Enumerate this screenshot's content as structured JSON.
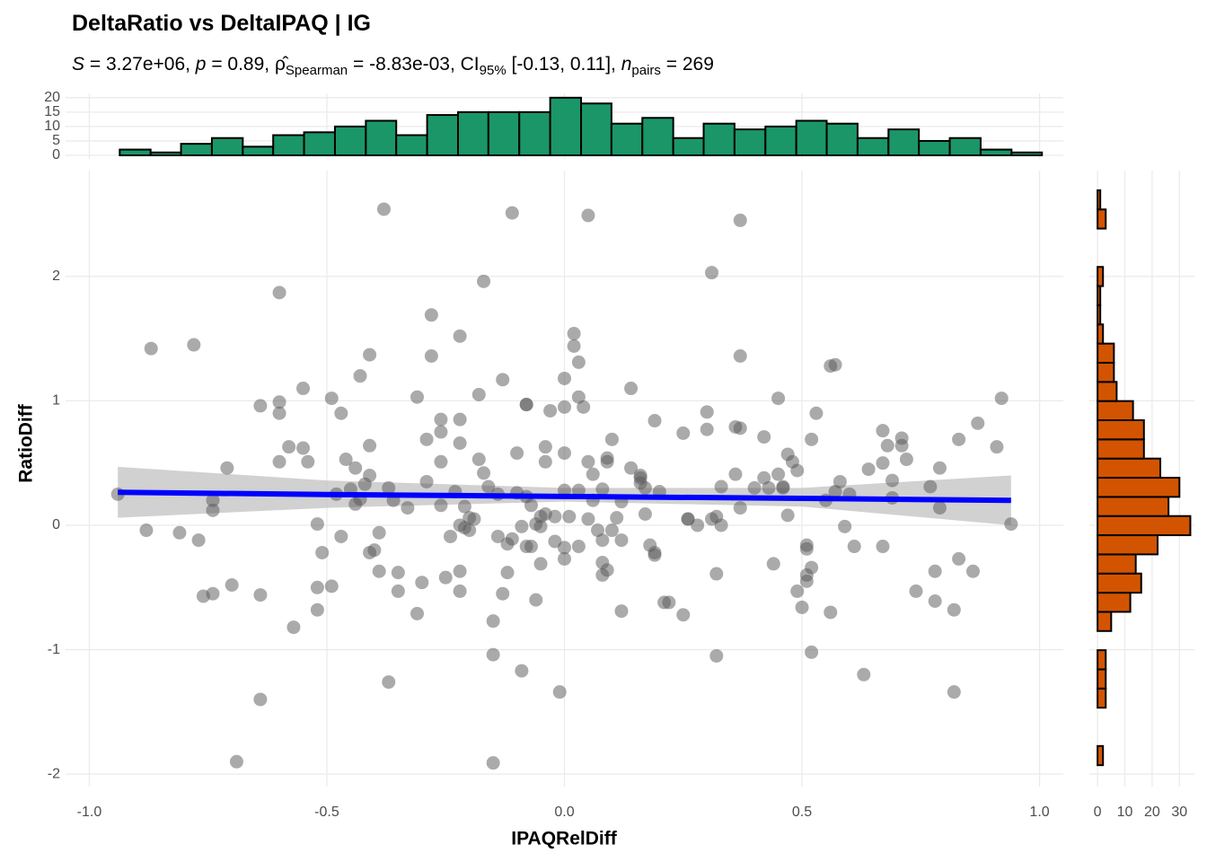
{
  "chart_data": [
    {
      "type": "scatter",
      "title": "DeltaRatio vs DeltaIPAQ | IG",
      "subtitle": [
        "S",
        " = 3.27e+06, ",
        "p",
        " = 0.89, ",
        "ρ̂",
        "Spearman",
        " = -8.83e-03, CI",
        "95%",
        " [-0.13, 0.11], ",
        "n",
        "pairs",
        " = 269"
      ],
      "x_label": "IPAQRelDiff",
      "y_label": "RatioDiff",
      "xlim": [
        -1.05,
        1.05
      ],
      "ylim": [
        -2.1,
        2.85
      ],
      "xticks": [
        {
          "value": -1,
          "label": "-1.0"
        },
        {
          "value": -0.5,
          "label": "-0.5"
        },
        {
          "value": 0,
          "label": "0.0"
        },
        {
          "value": 0.5,
          "label": "0.5"
        },
        {
          "value": 1,
          "label": "1.0"
        }
      ],
      "yticks": [
        -2,
        -1,
        0,
        1,
        2
      ],
      "grid": true,
      "color": "#555555",
      "x": [
        -0.94,
        -0.88,
        -0.87,
        -0.81,
        -0.78,
        -0.77,
        -0.76,
        -0.74,
        -0.74,
        -0.74,
        -0.71,
        -0.7,
        -0.69,
        -0.64,
        -0.64,
        -0.64,
        -0.6,
        -0.6,
        -0.6,
        -0.6,
        -0.58,
        -0.57,
        -0.55,
        -0.55,
        -0.54,
        -0.52,
        -0.51,
        -0.52,
        -0.52,
        -0.49,
        -0.49,
        -0.48,
        -0.47,
        -0.47,
        -0.45,
        -0.46,
        -0.44,
        -0.44,
        -0.43,
        -0.43,
        -0.42,
        -0.41,
        -0.41,
        -0.41,
        -0.41,
        -0.4,
        -0.39,
        -0.39,
        -0.38,
        -0.37,
        -0.37,
        -0.36,
        -0.35,
        -0.35,
        -0.33,
        -0.31,
        -0.31,
        -0.3,
        -0.29,
        -0.28,
        -0.28,
        -0.29,
        -0.26,
        -0.26,
        -0.26,
        -0.26,
        -0.25,
        -0.24,
        -0.23,
        -0.22,
        -0.22,
        -0.22,
        -0.22,
        -0.22,
        -0.22,
        -0.21,
        -0.21,
        -0.2,
        -0.2,
        -0.19,
        -0.18,
        -0.18,
        -0.17,
        -0.17,
        -0.16,
        -0.15,
        -0.15,
        -0.15,
        -0.14,
        -0.14,
        -0.13,
        -0.13,
        -0.12,
        -0.12,
        -0.11,
        -0.11,
        -0.1,
        -0.1,
        -0.09,
        -0.09,
        -0.08,
        -0.08,
        -0.08,
        -0.08,
        -0.07,
        -0.07,
        -0.06,
        -0.06,
        -0.05,
        -0.05,
        -0.05,
        -0.04,
        -0.04,
        -0.04,
        -0.03,
        -0.02,
        -0.02,
        -0.01,
        0.0,
        0.0,
        0.0,
        0.0,
        0.0,
        0.0,
        0.01,
        0.02,
        0.02,
        0.03,
        0.03,
        0.03,
        0.03,
        0.04,
        0.05,
        0.05,
        0.05,
        0.06,
        0.06,
        0.07,
        0.08,
        0.08,
        0.08,
        0.08,
        0.09,
        0.09,
        0.09,
        0.1,
        0.1,
        0.11,
        0.12,
        0.12,
        0.12,
        0.14,
        0.14,
        0.16,
        0.16,
        0.16,
        0.17,
        0.17,
        0.18,
        0.19,
        0.19,
        0.19,
        0.2,
        0.21,
        0.22,
        0.25,
        0.25,
        0.26,
        0.26,
        0.28,
        0.3,
        0.3,
        0.31,
        0.31,
        0.32,
        0.32,
        0.32,
        0.33,
        0.33,
        0.36,
        0.36,
        0.37,
        0.37,
        0.37,
        0.37,
        0.4,
        0.42,
        0.42,
        0.43,
        0.44,
        0.45,
        0.45,
        0.46,
        0.46,
        0.47,
        0.47,
        0.48,
        0.49,
        0.49,
        0.5,
        0.51,
        0.51,
        0.51,
        0.51,
        0.52,
        0.52,
        0.52,
        0.53,
        0.55,
        0.56,
        0.56,
        0.57,
        0.57,
        0.58,
        0.59,
        0.6,
        0.61,
        0.63,
        0.64,
        0.67,
        0.67,
        0.67,
        0.68,
        0.69,
        0.69,
        0.71,
        0.71,
        0.72,
        0.74,
        0.77,
        0.78,
        0.79,
        0.78,
        0.79,
        0.82,
        0.82,
        0.83,
        0.83,
        0.87,
        0.86,
        0.91,
        0.92,
        0.94
      ],
      "y": [
        0.25,
        -0.04,
        1.42,
        -0.06,
        1.45,
        -0.12,
        -0.57,
        -0.55,
        0.12,
        0.2,
        0.46,
        -0.48,
        -1.9,
        0.96,
        -0.56,
        -1.4,
        1.87,
        0.99,
        0.9,
        0.51,
        0.63,
        -0.82,
        0.62,
        1.1,
        0.51,
        0.01,
        -0.22,
        -0.68,
        -0.5,
        1.02,
        -0.49,
        0.25,
        0.9,
        -0.09,
        0.29,
        0.53,
        0.17,
        0.46,
        1.2,
        0.21,
        0.33,
        -0.22,
        0.64,
        0.4,
        1.37,
        -0.2,
        -0.37,
        -0.06,
        2.54,
        -1.26,
        0.3,
        0.2,
        -0.53,
        -0.38,
        0.14,
        -0.71,
        1.03,
        -0.46,
        0.35,
        1.69,
        1.36,
        0.69,
        0.85,
        0.51,
        0.75,
        0.16,
        -0.42,
        -0.09,
        0.27,
        0.66,
        0.85,
        -0.53,
        -0.37,
        1.52,
        0.0,
        0.15,
        -0.02,
        0.06,
        -0.04,
        0.05,
        1.05,
        0.53,
        0.42,
        1.96,
        0.31,
        -1.04,
        -0.77,
        -1.91,
        0.25,
        -0.09,
        1.17,
        -0.55,
        -0.15,
        -0.38,
        -0.11,
        2.51,
        0.26,
        0.58,
        -1.17,
        -0.01,
        0.97,
        0.23,
        -0.17,
        0.97,
        -0.17,
        0.16,
        0.01,
        -0.6,
        0.07,
        -0.31,
        -0.01,
        0.09,
        0.63,
        0.51,
        0.92,
        0.07,
        -0.13,
        -1.34,
        1.18,
        0.58,
        0.95,
        0.28,
        -0.27,
        -0.18,
        0.07,
        1.54,
        1.44,
        1.03,
        1.31,
        0.28,
        -0.17,
        0.95,
        2.49,
        0.51,
        0.05,
        0.41,
        0.2,
        -0.04,
        0.29,
        -0.12,
        -0.4,
        -0.3,
        -0.36,
        0.54,
        0.51,
        -0.04,
        0.69,
        0.06,
        0.19,
        -0.12,
        -0.69,
        1.1,
        0.46,
        0.38,
        0.4,
        0.34,
        0.3,
        0.09,
        -0.16,
        -0.22,
        -0.24,
        0.84,
        0.27,
        -0.62,
        -0.62,
        -0.72,
        0.74,
        0.05,
        0.05,
        0.0,
        0.91,
        0.77,
        0.05,
        2.03,
        -0.39,
        0.07,
        -1.05,
        0.31,
        0.0,
        0.41,
        0.79,
        0.78,
        1.36,
        0.14,
        2.45,
        0.3,
        0.71,
        0.38,
        0.3,
        -0.31,
        0.41,
        1.02,
        0.31,
        0.3,
        0.57,
        0.08,
        0.51,
        -0.53,
        0.44,
        -0.66,
        -0.45,
        -0.4,
        -0.16,
        -0.19,
        0.69,
        -0.34,
        -1.02,
        0.9,
        0.2,
        -0.7,
        1.28,
        0.27,
        1.29,
        0.35,
        -0.01,
        0.25,
        -0.17,
        -1.2,
        0.45,
        -0.17,
        0.76,
        0.5,
        0.64,
        0.36,
        0.22,
        0.7,
        0.64,
        0.53,
        -0.53,
        0.31,
        -0.37,
        0.46,
        -0.61,
        0.14,
        -0.68,
        -1.34,
        0.69,
        -0.27,
        0.82,
        -0.37,
        0.63,
        1.02,
        0.01
      ],
      "fit": {
        "x": [
          -0.94,
          -0.5,
          0,
          0.5,
          0.94
        ],
        "y": [
          0.265,
          0.247,
          0.232,
          0.216,
          0.2
        ],
        "lower": [
          0.06,
          0.14,
          0.19,
          0.15,
          0.0
        ],
        "upper": [
          0.47,
          0.36,
          0.3,
          0.3,
          0.4
        ],
        "color": "#0000ff",
        "band_color": "#bebebe"
      }
    },
    {
      "type": "histogram",
      "orientation": "vertical",
      "color": "#1b9669",
      "bins": [
        -0.936,
        -0.871,
        -0.807,
        -0.742,
        -0.677,
        -0.613,
        -0.548,
        -0.483,
        -0.418,
        -0.354,
        -0.289,
        -0.224,
        -0.16,
        -0.095,
        -0.03,
        0.035,
        0.099,
        0.164,
        0.229,
        0.293,
        0.358,
        0.423,
        0.488,
        0.552,
        0.617,
        0.682,
        0.746,
        0.811,
        0.876,
        0.941,
        1.005
      ],
      "counts": [
        2,
        1,
        4,
        6,
        3,
        7,
        8,
        10,
        12,
        7,
        14,
        15,
        15,
        15,
        20,
        18,
        11,
        13,
        6,
        11,
        9,
        10,
        12,
        11,
        6,
        9,
        5,
        6,
        2,
        1
      ],
      "ylim": [
        -1.25,
        21.5
      ],
      "yticks": [
        0,
        5,
        10,
        15,
        20
      ],
      "grid": true
    },
    {
      "type": "histogram",
      "orientation": "horizontal",
      "color": "#d35400",
      "bins": [
        -1.928,
        -1.774,
        -1.62,
        -1.466,
        -1.312,
        -1.158,
        -1.004,
        -0.85,
        -0.696,
        -0.542,
        -0.388,
        -0.234,
        -0.08,
        0.074,
        0.228,
        0.382,
        0.536,
        0.69,
        0.844,
        0.998,
        1.152,
        1.306,
        1.46,
        1.614,
        1.768,
        1.922,
        2.076,
        2.23,
        2.384,
        2.538,
        2.692
      ],
      "counts": [
        2,
        0,
        0,
        3,
        3,
        3,
        0,
        5,
        12,
        16,
        14,
        22,
        34,
        26,
        30,
        23,
        17,
        17,
        13,
        7,
        6,
        6,
        2,
        1,
        1,
        2,
        0,
        0,
        3,
        1
      ],
      "xlim": [
        -3,
        35.5
      ],
      "xticks": [
        0,
        10,
        20,
        30
      ],
      "grid": true
    }
  ]
}
